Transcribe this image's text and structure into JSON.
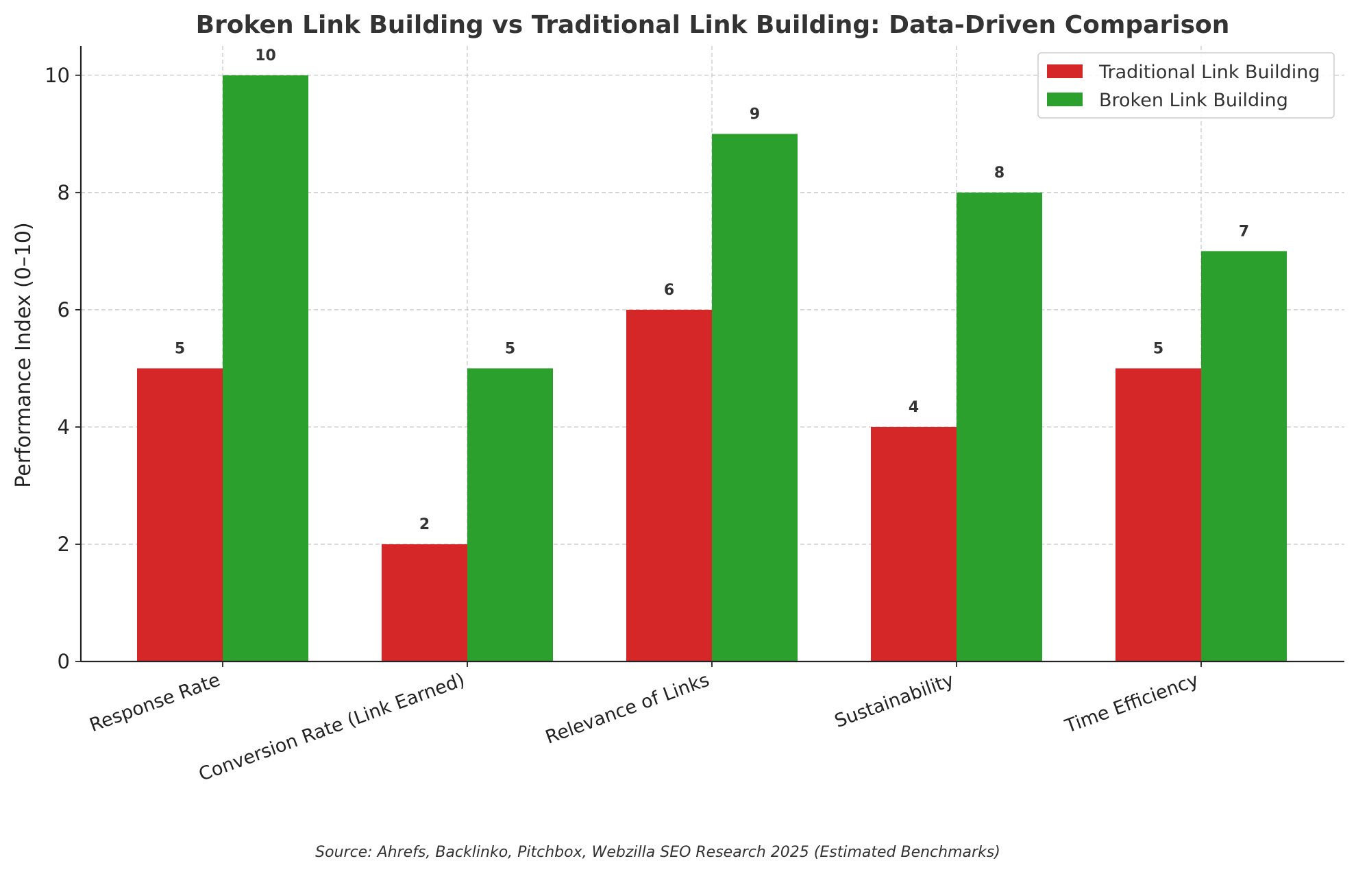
{
  "chart_data": {
    "type": "bar",
    "title": "Broken Link Building vs Traditional Link Building: Data-Driven Comparison",
    "xlabel": "",
    "ylabel": "Performance Index (0–10)",
    "ylim": [
      0,
      10.5
    ],
    "yticks": [
      0,
      2,
      4,
      6,
      8,
      10
    ],
    "grid": true,
    "legend_position": "top-right",
    "categories": [
      "Response Rate",
      "Conversion Rate (Link Earned)",
      "Relevance of Links",
      "Sustainability",
      "Time Efficiency"
    ],
    "series": [
      {
        "name": "Traditional Link Building",
        "color": "#d62728",
        "values": [
          5,
          2,
          6,
          4,
          5
        ]
      },
      {
        "name": "Broken Link Building",
        "color": "#2ca02c",
        "values": [
          10,
          5,
          9,
          8,
          7
        ]
      }
    ],
    "source_note": "Source: Ahrefs, Backlinko, Pitchbox, Webzilla SEO Research 2025 (Estimated Benchmarks)"
  }
}
